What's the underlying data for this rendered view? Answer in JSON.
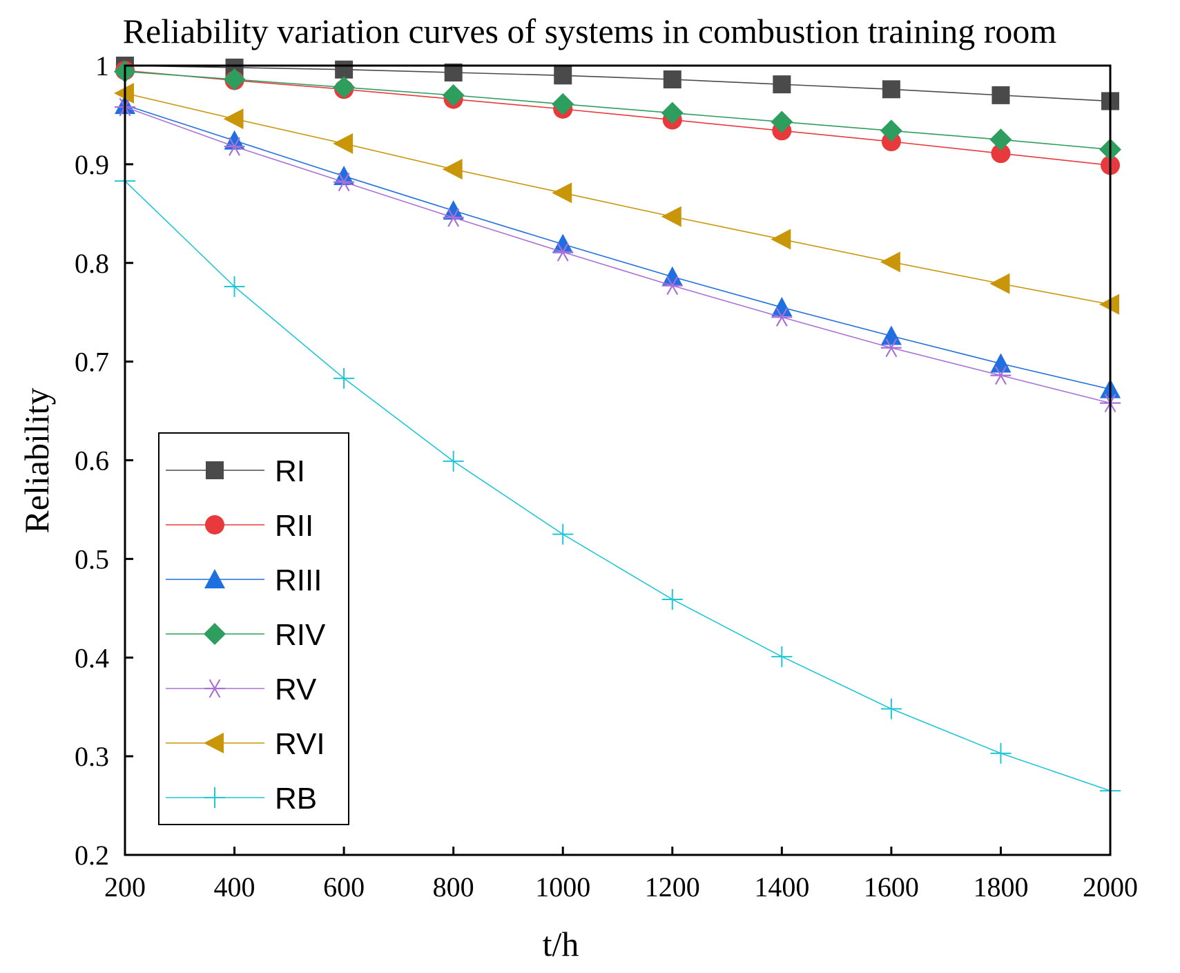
{
  "chart_data": {
    "type": "line",
    "title": "Reliability variation curves of systems in combustion training room",
    "xlabel": "t/h",
    "ylabel": "Reliability",
    "xlim": [
      200,
      2000
    ],
    "ylim": [
      0.2,
      1
    ],
    "x_ticks": [
      "200",
      "400",
      "600",
      "800",
      "1000",
      "1200",
      "1400",
      "1600",
      "1800",
      "2000"
    ],
    "y_ticks": [
      "0.2",
      "0.3",
      "0.4",
      "0.5",
      "0.6",
      "0.7",
      "0.8",
      "0.9",
      "1"
    ],
    "x": [
      200,
      400,
      600,
      800,
      1000,
      1200,
      1400,
      1600,
      1800,
      2000
    ],
    "grid": false,
    "legend_position": "lower-left",
    "series": [
      {
        "name": "RI",
        "color": "#4a4a4a",
        "marker": "square",
        "values": [
          1.0,
          0.998,
          0.996,
          0.993,
          0.99,
          0.986,
          0.981,
          0.976,
          0.97,
          0.964
        ]
      },
      {
        "name": "RII",
        "color": "#e8393c",
        "marker": "circle",
        "values": [
          0.995,
          0.985,
          0.976,
          0.966,
          0.956,
          0.945,
          0.934,
          0.923,
          0.911,
          0.899
        ]
      },
      {
        "name": "RIII",
        "color": "#1f6fe0",
        "marker": "triangle-up",
        "values": [
          0.96,
          0.924,
          0.888,
          0.853,
          0.819,
          0.786,
          0.755,
          0.726,
          0.698,
          0.672
        ]
      },
      {
        "name": "RIV",
        "color": "#2e9e5e",
        "marker": "diamond",
        "values": [
          0.994,
          0.986,
          0.978,
          0.97,
          0.961,
          0.952,
          0.943,
          0.934,
          0.925,
          0.915
        ]
      },
      {
        "name": "RV",
        "color": "#a970d8",
        "marker": "asterisk",
        "values": [
          0.958,
          0.918,
          0.882,
          0.846,
          0.811,
          0.777,
          0.745,
          0.714,
          0.686,
          0.658
        ]
      },
      {
        "name": "RVI",
        "color": "#c9960a",
        "marker": "triangle-left",
        "values": [
          0.972,
          0.946,
          0.921,
          0.895,
          0.871,
          0.847,
          0.824,
          0.801,
          0.779,
          0.758
        ]
      },
      {
        "name": "RB",
        "color": "#1ec6d6",
        "marker": "plus",
        "values": [
          0.883,
          0.776,
          0.683,
          0.599,
          0.525,
          0.459,
          0.401,
          0.348,
          0.303,
          0.265
        ]
      }
    ]
  }
}
